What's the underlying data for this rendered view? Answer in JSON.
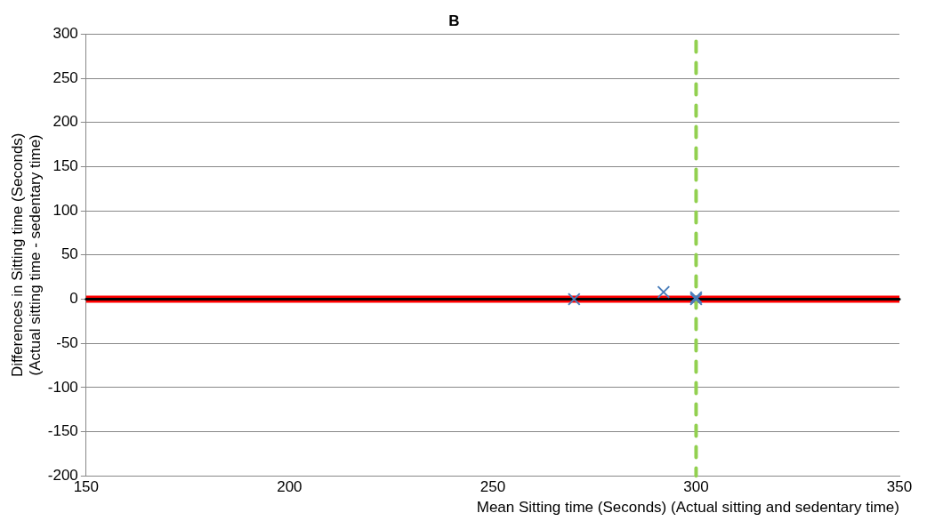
{
  "chart_data": {
    "type": "scatter",
    "title": "B",
    "xlabel": "Mean Sitting time (Seconds) (Actual sitting and sedentary time)",
    "ylabel": "Differences in Sitting time (Seconds) (Actual sitting time - sedentary time)",
    "x": [
      270,
      292,
      300,
      300
    ],
    "values": [
      0,
      8,
      2,
      0
    ],
    "color": "#4a7ebb",
    "marker": "cross",
    "xlim": [
      150,
      350
    ],
    "xticks": [
      150,
      200,
      250,
      300,
      350
    ],
    "ylim": [
      -200,
      300
    ],
    "yticks": [
      -200,
      -150,
      -100,
      -50,
      0,
      50,
      100,
      150,
      200,
      250,
      300
    ],
    "grid": "y",
    "bands": [
      {
        "axis": "y",
        "from": -4,
        "to": 4,
        "color": "#ff0000"
      }
    ],
    "ref_lines": [
      {
        "axis": "y",
        "value": 0,
        "color": "#000000",
        "line_style": "solid"
      },
      {
        "axis": "x",
        "value": 300,
        "color": "#92d050",
        "line_style": "dashed"
      }
    ]
  }
}
